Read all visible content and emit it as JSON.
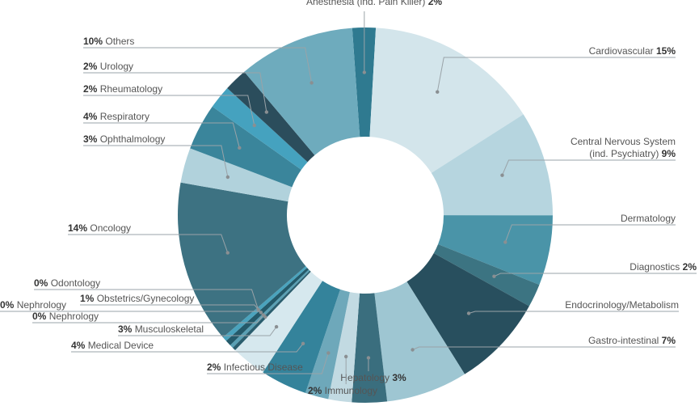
{
  "chart_data": {
    "type": "pie",
    "donut": true,
    "title": "",
    "slices": [
      {
        "name": "Anesthesia (ind. Pain Killer)",
        "pct_label": "2%",
        "value": 2,
        "color": "#2f7a90"
      },
      {
        "name": "Cardiovascular",
        "pct_label": "15%",
        "value": 15,
        "color": "#d3e5eb"
      },
      {
        "name": "Central Nervous System (ind. Psychiatry)",
        "pct_label": "9%",
        "value": 9,
        "color": "#b6d5df"
      },
      {
        "name": "Dermatology",
        "pct_label": "",
        "value": 6,
        "color": "#4a94a8"
      },
      {
        "name": "Diagnostics",
        "pct_label": "2%",
        "value": 2,
        "color": "#3c7482"
      },
      {
        "name": "Endocrinology/Metabolism",
        "pct_label": "",
        "value": 8,
        "color": "#284f5e"
      },
      {
        "name": "Gastro-intestinal",
        "pct_label": "7%",
        "value": 7,
        "color": "#9ec6d2"
      },
      {
        "name": "Hepatology",
        "pct_label": "3%",
        "value": 3,
        "color": "#3a6e7e"
      },
      {
        "name": "Immunology",
        "pct_label": "2%",
        "value": 2,
        "color": "#c2dae2"
      },
      {
        "name": "Infectious Disease",
        "pct_label": "2%",
        "value": 2,
        "color": "#6ea8ba"
      },
      {
        "name": "Medical Device",
        "pct_label": "4%",
        "value": 4,
        "color": "#34839b"
      },
      {
        "name": "Musculoskeletal",
        "pct_label": "3%",
        "value": 3,
        "color": "#d6e8ee"
      },
      {
        "name": "Nephrology",
        "pct_label": "0%",
        "value": 0.3,
        "color": "#2b5e6e"
      },
      {
        "name": "Nephrology",
        "pct_label": "0%",
        "value": 0.3,
        "color": "#5aa0b4"
      },
      {
        "name": "Obstetrics/Gynecology",
        "pct_label": "1%",
        "value": 0.5,
        "color": "#245a6a"
      },
      {
        "name": "Odontology",
        "pct_label": "0%",
        "value": 0.4,
        "color": "#4aa3bd"
      },
      {
        "name": "Oncology",
        "pct_label": "14%",
        "value": 14,
        "color": "#3d7282"
      },
      {
        "name": "Ophthalmology",
        "pct_label": "3%",
        "value": 3,
        "color": "#b1d2dc"
      },
      {
        "name": "Respiratory",
        "pct_label": "4%",
        "value": 4,
        "color": "#3a859b"
      },
      {
        "name": "Rheumatology",
        "pct_label": "2%",
        "value": 2,
        "color": "#45a2bf"
      },
      {
        "name": "Urology",
        "pct_label": "2%",
        "value": 2,
        "color": "#2b4d5c"
      },
      {
        "name": "Others",
        "pct_label": "10%",
        "value": 10,
        "color": "#6eabbd"
      }
    ]
  }
}
